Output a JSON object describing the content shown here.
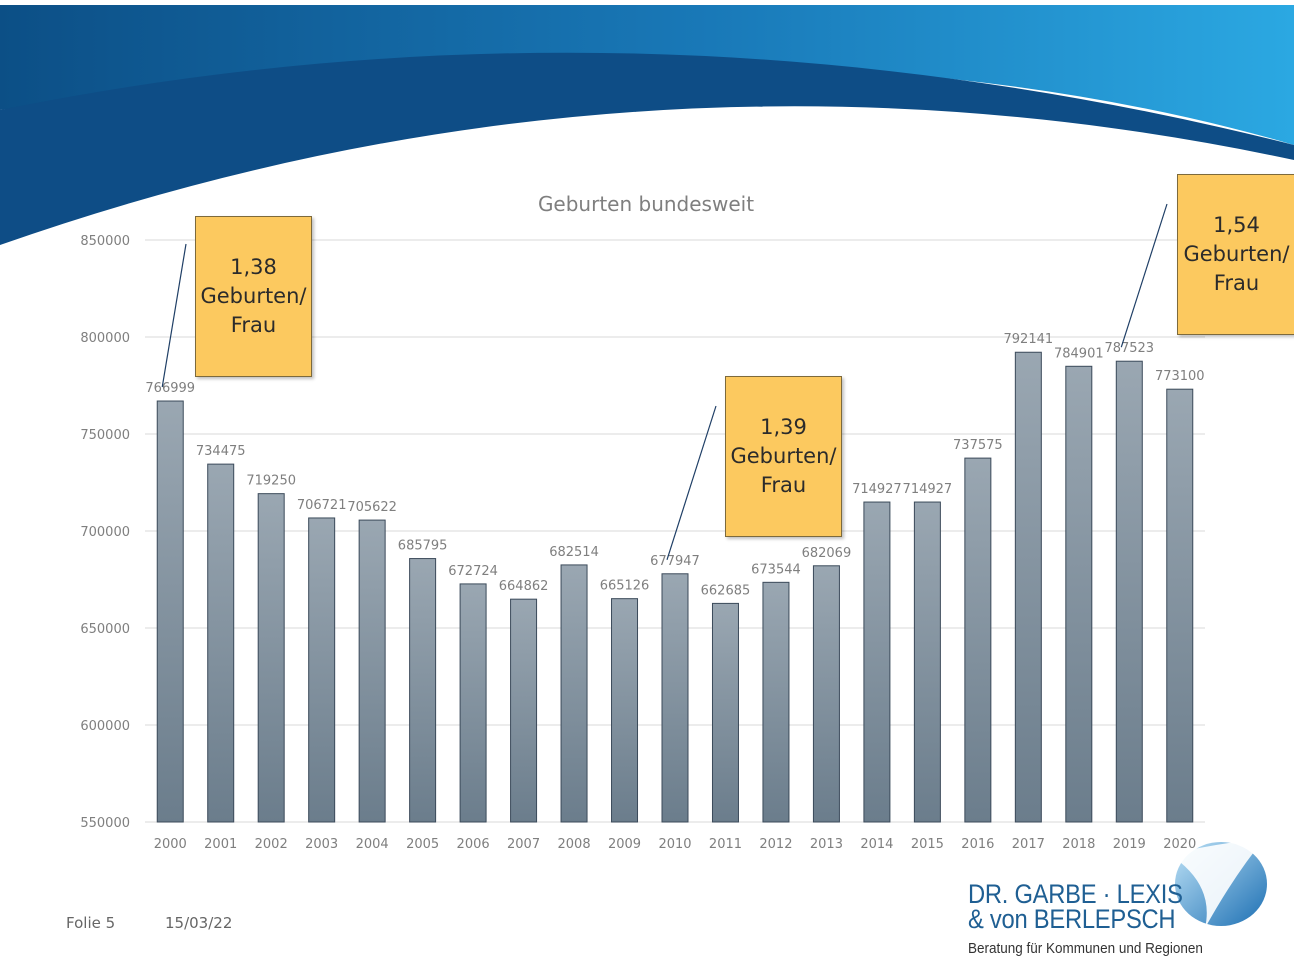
{
  "chart_data": {
    "type": "bar",
    "title": "Geburten bundesweit",
    "categories": [
      "2000",
      "2001",
      "2002",
      "2003",
      "2004",
      "2005",
      "2006",
      "2007",
      "2008",
      "2009",
      "2010",
      "2011",
      "2012",
      "2013",
      "2014",
      "2015",
      "2016",
      "2017",
      "2018",
      "2019",
      "2020"
    ],
    "values": [
      766999,
      734475,
      719250,
      706721,
      705622,
      685795,
      672724,
      664862,
      682514,
      665126,
      677947,
      662685,
      673544,
      682069,
      714927,
      714927,
      737575,
      792141,
      784901,
      787523,
      773100
    ],
    "ylim": [
      550000,
      850000
    ],
    "yticks": [
      550000,
      600000,
      650000,
      700000,
      750000,
      800000,
      850000
    ],
    "grid": true,
    "data_labels": true,
    "colors": {
      "bar_top": "#9aa7b2",
      "bar_bottom": "#6b7d8c",
      "bar_edge": "#3b4a5a",
      "callout": "#fcc95f"
    }
  },
  "callouts": [
    {
      "id": "2000",
      "text": "1,38\nGeburten/\nFrau"
    },
    {
      "id": "2010",
      "text": "1,39\nGeburten/\nFrau"
    },
    {
      "id": "2019",
      "text": "1,54\nGeburten/\nFrau"
    }
  ],
  "footer": {
    "slide": "Folie 5",
    "date": "15/03/22"
  },
  "logo": {
    "name_line1": "DR. GARBE · LEXIS",
    "name_line2": "& von BERLEPSCH",
    "tagline": "Beratung für Kommunen und Regionen"
  }
}
